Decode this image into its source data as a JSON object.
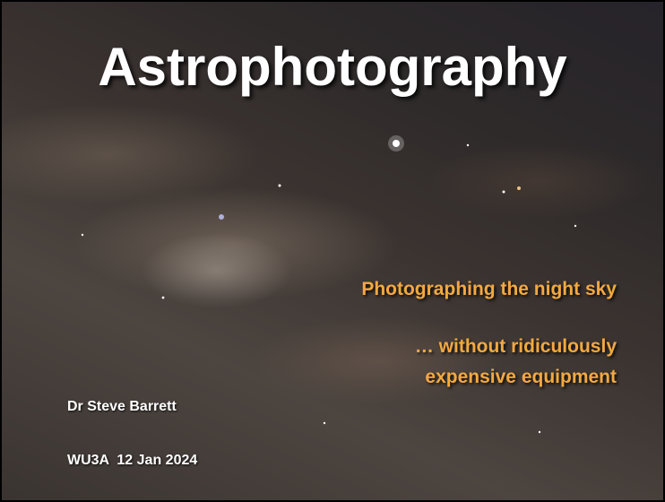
{
  "slide": {
    "title": "Astrophotography",
    "subtitle": "Photographing the night sky",
    "tagline": [
      "… without ridiculously",
      "expensive equipment"
    ],
    "author": "Dr Steve Barrett",
    "event": "WU3A  12 Jan 2024"
  }
}
